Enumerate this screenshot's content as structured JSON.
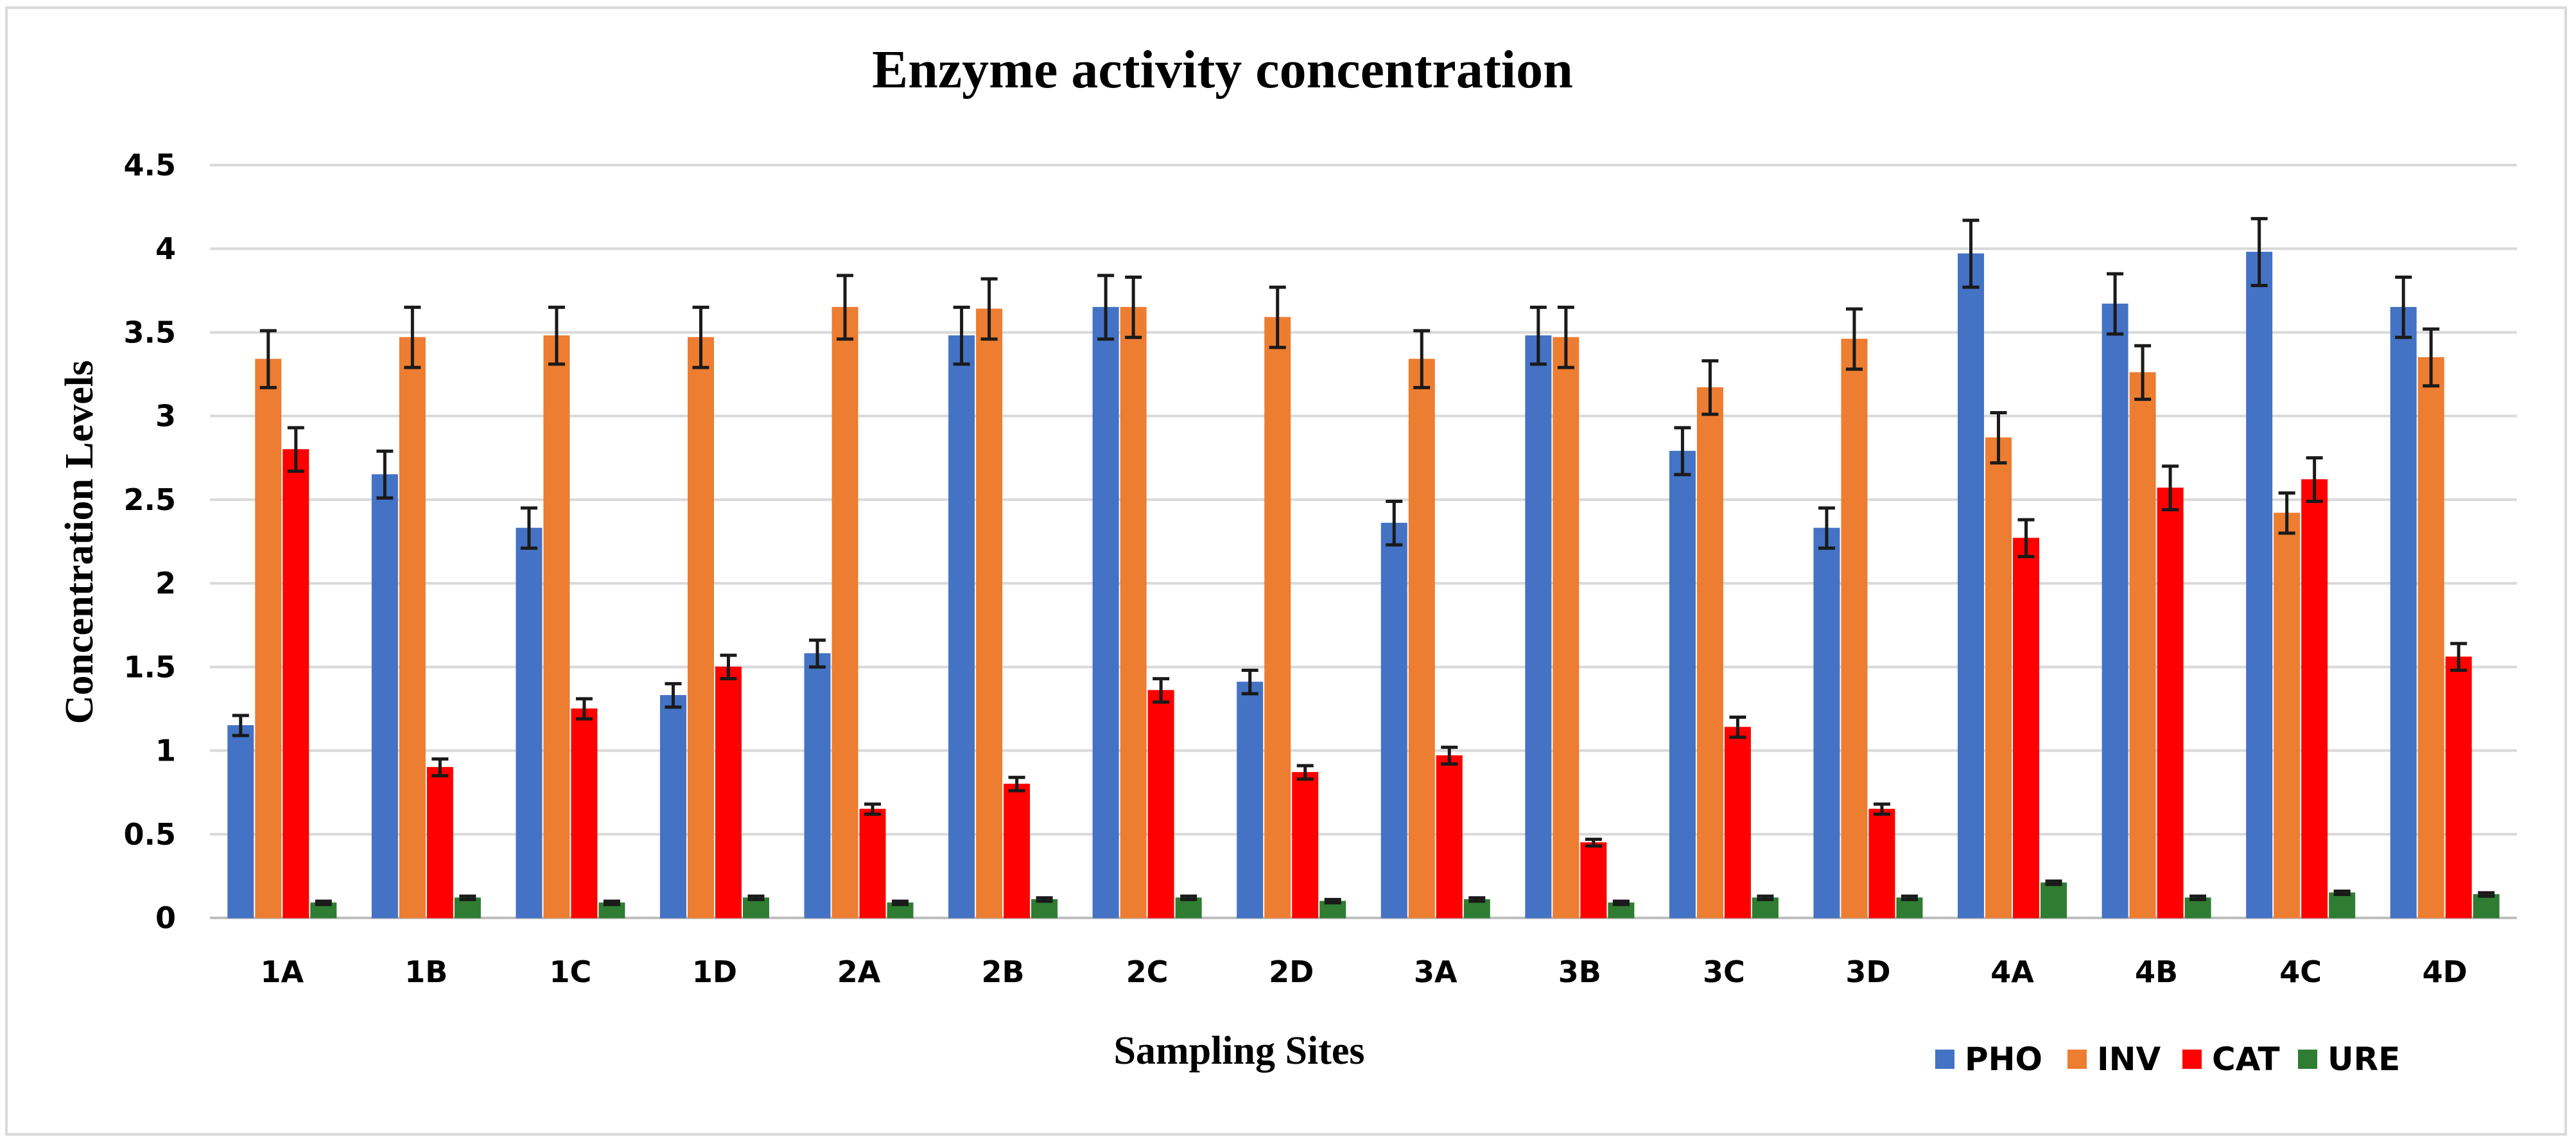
{
  "chart_data": {
    "type": "bar",
    "title": "Enzyme activity concentration",
    "xlabel": "Sampling Sites",
    "ylabel": "Concentration Levels",
    "ylim": [
      0,
      4.5
    ],
    "yticks": [
      0,
      0.5,
      1,
      1.5,
      2,
      2.5,
      3,
      3.5,
      4,
      4.5
    ],
    "ytick_labels": [
      "0",
      "0.5",
      "1",
      "1.5",
      "2",
      "2.5",
      "3",
      "3.5",
      "4",
      "4.5"
    ],
    "grid": true,
    "legend_position": "bottom-right",
    "categories": [
      "1A",
      "1B",
      "1C",
      "1D",
      "2A",
      "2B",
      "2C",
      "2D",
      "3A",
      "3B",
      "3C",
      "3D",
      "4A",
      "4B",
      "4C",
      "4D"
    ],
    "series": [
      {
        "name": "PHO",
        "color": "#4472c4",
        "values": [
          1.15,
          2.65,
          2.33,
          1.33,
          1.58,
          3.48,
          3.65,
          1.41,
          2.36,
          3.48,
          2.79,
          2.33,
          3.97,
          3.67,
          3.98,
          3.65
        ],
        "errors": [
          0.06,
          0.14,
          0.12,
          0.07,
          0.08,
          0.17,
          0.19,
          0.07,
          0.13,
          0.17,
          0.14,
          0.12,
          0.2,
          0.18,
          0.2,
          0.18
        ]
      },
      {
        "name": "INV",
        "color": "#ed7d31",
        "values": [
          3.34,
          3.47,
          3.48,
          3.47,
          3.65,
          3.64,
          3.65,
          3.59,
          3.34,
          3.47,
          3.17,
          3.46,
          2.87,
          3.26,
          2.42,
          3.35
        ],
        "errors": [
          0.17,
          0.18,
          0.17,
          0.18,
          0.19,
          0.18,
          0.18,
          0.18,
          0.17,
          0.18,
          0.16,
          0.18,
          0.15,
          0.16,
          0.12,
          0.17
        ]
      },
      {
        "name": "CAT",
        "color": "#ff0000",
        "values": [
          2.8,
          0.9,
          1.25,
          1.5,
          0.65,
          0.8,
          1.36,
          0.87,
          0.97,
          0.45,
          1.14,
          0.65,
          2.27,
          2.57,
          2.62,
          1.56
        ],
        "errors": [
          0.13,
          0.05,
          0.06,
          0.07,
          0.03,
          0.04,
          0.07,
          0.04,
          0.05,
          0.02,
          0.06,
          0.03,
          0.11,
          0.13,
          0.13,
          0.08
        ]
      },
      {
        "name": "URE",
        "color": "#2e7d32",
        "values": [
          0.09,
          0.12,
          0.09,
          0.12,
          0.09,
          0.11,
          0.12,
          0.1,
          0.11,
          0.09,
          0.12,
          0.12,
          0.21,
          0.12,
          0.15,
          0.14
        ],
        "errors": [
          0.01,
          0.01,
          0.01,
          0.01,
          0.01,
          0.01,
          0.01,
          0.01,
          0.01,
          0.01,
          0.01,
          0.01,
          0.01,
          0.01,
          0.01,
          0.01
        ]
      }
    ]
  }
}
